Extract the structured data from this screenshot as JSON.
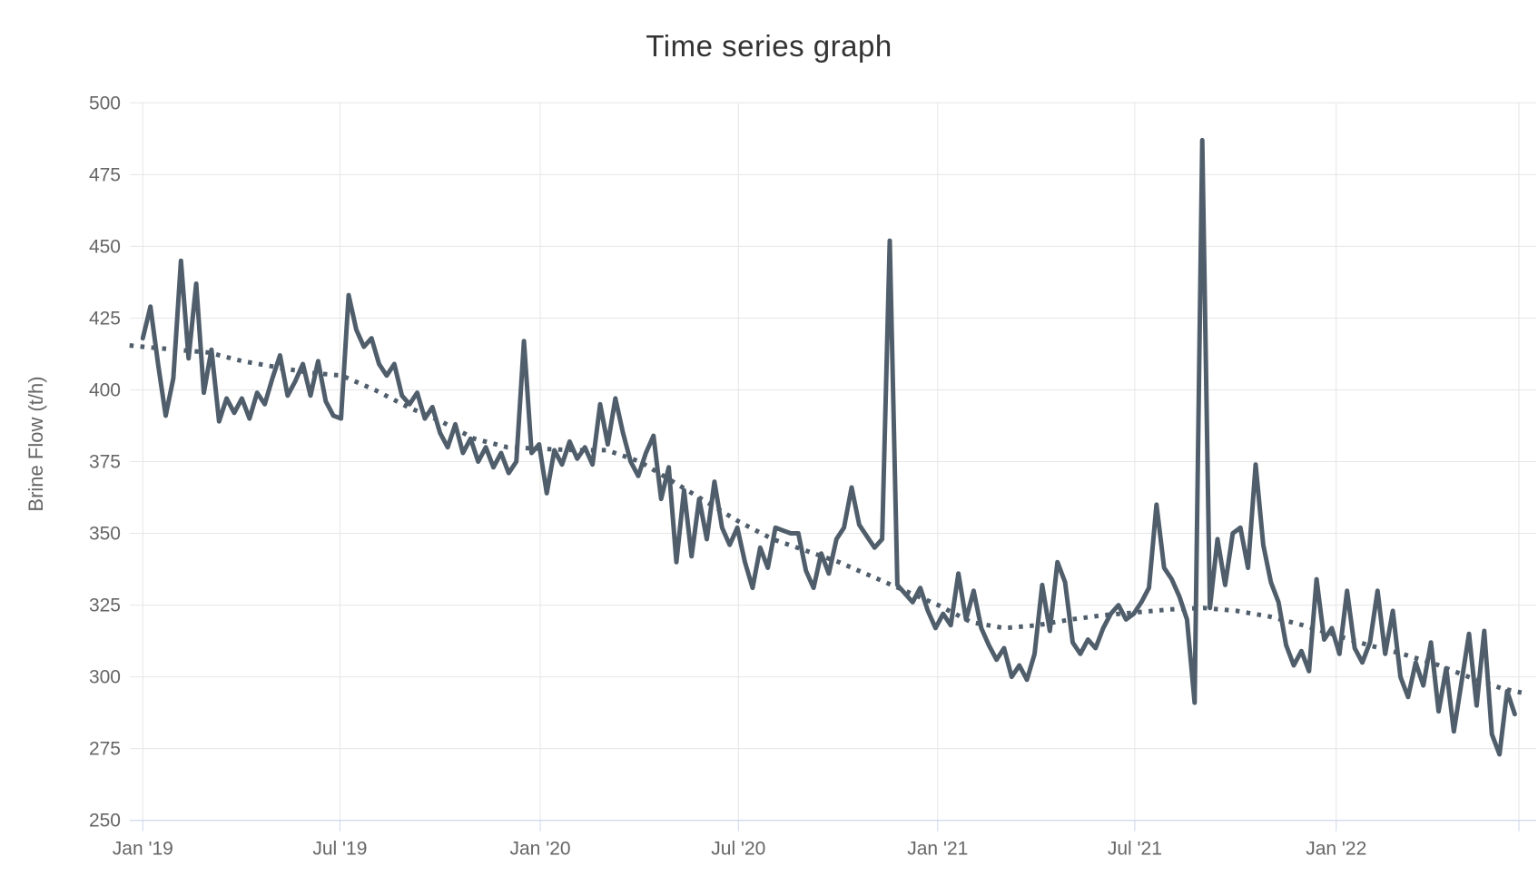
{
  "title": "Time series graph",
  "colors": {
    "series": "#505e6c",
    "trend": "#505e6c",
    "grid": "#e6e6e6",
    "axis_line": "#ccd6eb",
    "axis_label": "#666666",
    "title_color": "#333333",
    "background": "#ffffff"
  },
  "chart_data": {
    "type": "line",
    "title": "Time series graph",
    "xlabel": "",
    "ylabel": "Brine Flow (t/h)",
    "ylim": [
      250,
      500
    ],
    "ytick_interval": 25,
    "ytick_labels": [
      "250",
      "275",
      "300",
      "325",
      "350",
      "375",
      "400",
      "425",
      "450",
      "475",
      "500"
    ],
    "xtick_labels": [
      "Jan '19",
      "Jul '19",
      "Jan '20",
      "Jul '20",
      "Jan '21",
      "Jul '21",
      "Jan '22"
    ],
    "grid": true,
    "legend": false,
    "x_start": "2019-01-01",
    "x_end": "2022-06-14",
    "sampling": "weekly",
    "series": [
      {
        "id": "brine-flow-weekly",
        "style": "solid",
        "values": [
          418,
          429,
          409,
          391,
          404,
          445,
          411,
          437,
          399,
          414,
          389,
          397,
          392,
          397,
          390,
          399,
          395,
          404,
          412,
          398,
          403,
          409,
          398,
          410,
          396,
          391,
          390,
          433,
          421,
          415,
          418,
          409,
          405,
          409,
          398,
          395,
          399,
          390,
          394,
          385,
          380,
          388,
          378,
          383,
          375,
          380,
          373,
          378,
          371,
          375,
          417,
          378,
          381,
          364,
          379,
          374,
          382,
          376,
          380,
          374,
          395,
          381,
          397,
          385,
          375,
          370,
          378,
          384,
          362,
          373,
          340,
          365,
          342,
          362,
          348,
          368,
          352,
          346,
          352,
          340,
          331,
          345,
          338,
          352,
          351,
          350,
          350,
          337,
          331,
          343,
          336,
          348,
          352,
          366,
          353,
          349,
          345,
          348,
          452,
          332,
          329,
          326,
          331,
          323,
          317,
          322,
          318,
          336,
          320,
          330,
          317,
          311,
          306,
          310,
          300,
          304,
          299,
          308,
          332,
          316,
          340,
          333,
          312,
          308,
          313,
          310,
          317,
          322,
          325,
          320,
          322,
          326,
          331,
          360,
          338,
          334,
          328,
          320,
          291,
          487,
          324,
          348,
          332,
          350,
          352,
          338,
          374,
          346,
          333,
          326,
          311,
          304,
          309,
          302,
          334,
          313,
          317,
          308,
          330,
          310,
          305,
          312,
          330,
          308,
          323,
          300,
          293,
          305,
          297,
          312,
          288,
          303,
          281,
          298,
          315,
          290,
          316,
          280,
          273,
          295,
          287
        ]
      },
      {
        "id": "trend-smoothed",
        "style": "dotted",
        "points": [
          [
            -0.4,
            415.5
          ],
          [
            0,
            415
          ],
          [
            1,
            414
          ],
          [
            2,
            413
          ],
          [
            3,
            410
          ],
          [
            4,
            408
          ],
          [
            5,
            406
          ],
          [
            6,
            405
          ],
          [
            7,
            400
          ],
          [
            8,
            394
          ],
          [
            9,
            389
          ],
          [
            10,
            383
          ],
          [
            11,
            380
          ],
          [
            12,
            379.5
          ],
          [
            13,
            379
          ],
          [
            14,
            379
          ],
          [
            15,
            375
          ],
          [
            16,
            368
          ],
          [
            17,
            361
          ],
          [
            18,
            354
          ],
          [
            19,
            348
          ],
          [
            20,
            344
          ],
          [
            21,
            340
          ],
          [
            22,
            335
          ],
          [
            23,
            330
          ],
          [
            24,
            325
          ],
          [
            25,
            319
          ],
          [
            26,
            317
          ],
          [
            27,
            318
          ],
          [
            28,
            320
          ],
          [
            29,
            321.5
          ],
          [
            30,
            322.5
          ],
          [
            31,
            323.5
          ],
          [
            32,
            324
          ],
          [
            33,
            323
          ],
          [
            34,
            321
          ],
          [
            35,
            318
          ],
          [
            36,
            314.5
          ],
          [
            37,
            311
          ],
          [
            38,
            308
          ],
          [
            39,
            304.5
          ],
          [
            40,
            300
          ],
          [
            41,
            296
          ],
          [
            41.6,
            294.5
          ]
        ]
      }
    ]
  }
}
